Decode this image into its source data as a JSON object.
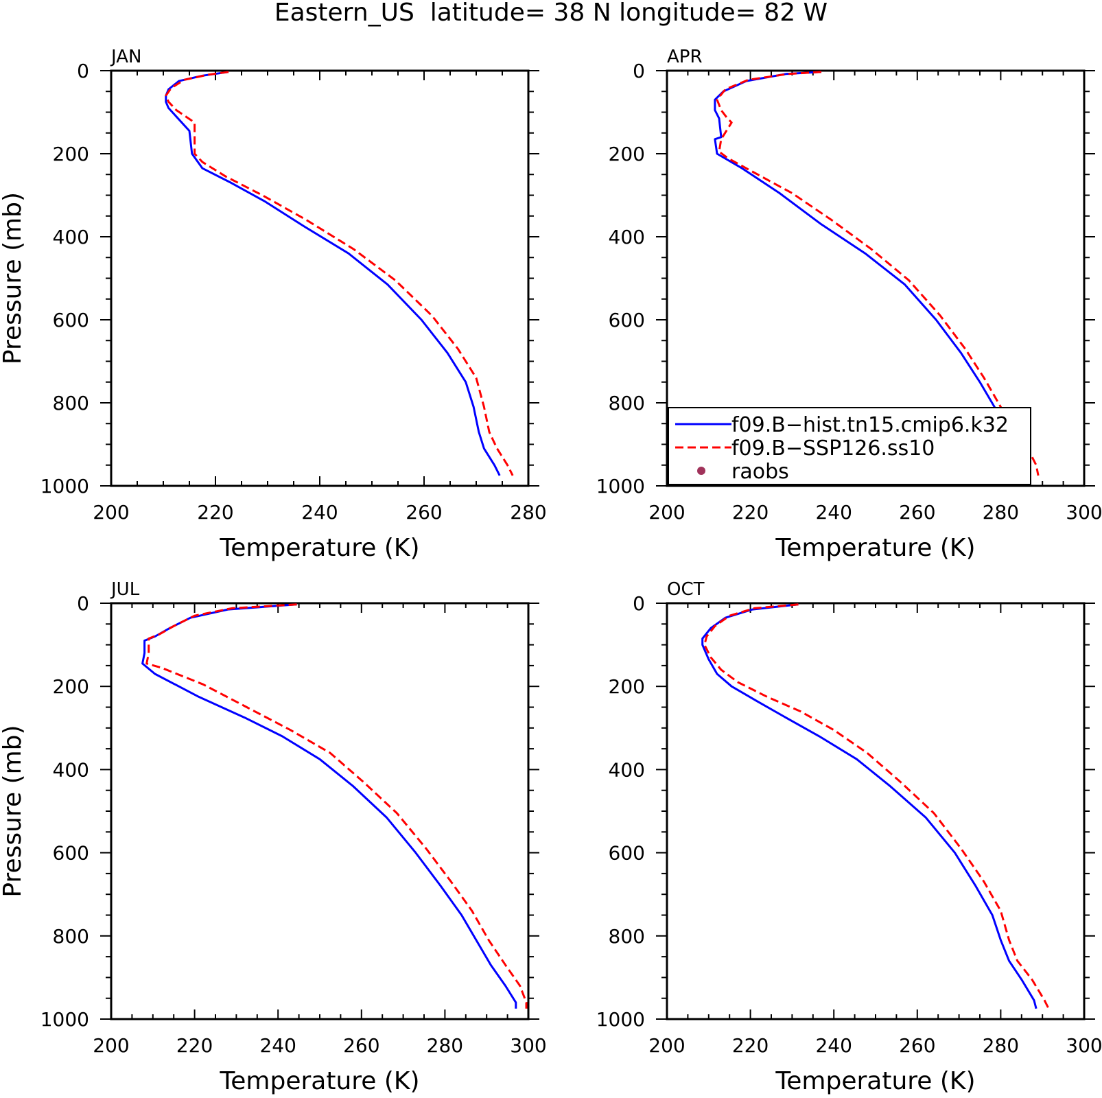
{
  "figure": {
    "title": "Eastern_US  latitude= 38 N longitude= 82 W"
  },
  "legend": {
    "entries": [
      {
        "label": "f09.B−hist.tn15.cmip6.k32",
        "style": "solid",
        "color": "#0000ff"
      },
      {
        "label": "f09.B−SSP126.ss10",
        "style": "dashed",
        "color": "#ff0000"
      },
      {
        "label": "raobs",
        "style": "marker",
        "color": "#a0325a"
      }
    ]
  },
  "chart_data": [
    {
      "type": "line",
      "title": "JAN",
      "xlabel": "Temperature (K)",
      "ylabel": "Pressure (mb)",
      "xlim": [
        200,
        280
      ],
      "ylim": [
        1000,
        0
      ],
      "xticks": [
        200,
        220,
        240,
        260,
        280
      ],
      "yticks": [
        0,
        200,
        400,
        600,
        800,
        1000
      ],
      "series": [
        {
          "color": "#0000ff",
          "style": "solid",
          "x": [
            222.5,
            217.5,
            213.0,
            211.0,
            210.5,
            210.5,
            211.0,
            215.0,
            215.5,
            217.5,
            223.0,
            229.5,
            237.0,
            245.5,
            253.0,
            259.5,
            264.5,
            268.0,
            269.5,
            270.5,
            271.5,
            273.5,
            274.5
          ],
          "y": [
            3,
            12,
            25,
            45,
            60,
            75,
            90,
            145,
            200,
            235,
            270,
            315,
            375,
            440,
            515,
            600,
            680,
            750,
            810,
            870,
            910,
            950,
            975
          ]
        },
        {
          "color": "#ff0000",
          "style": "dashed",
          "x": [
            222.5,
            218.5,
            214.0,
            211.5,
            210.5,
            211.0,
            212.5,
            216.0,
            216.0,
            217.5,
            222.0,
            229.0,
            237.5,
            246.5,
            254.5,
            261.5,
            266.5,
            270.0,
            271.5,
            272.5,
            274.0,
            276.0,
            277.0
          ],
          "y": [
            3,
            10,
            22,
            42,
            60,
            75,
            95,
            125,
            200,
            220,
            255,
            300,
            360,
            430,
            505,
            590,
            670,
            740,
            810,
            870,
            910,
            950,
            975
          ]
        }
      ]
    },
    {
      "type": "line",
      "title": "APR",
      "xlabel": "Temperature (K)",
      "ylabel": "",
      "xlim": [
        200,
        300
      ],
      "ylim": [
        1000,
        0
      ],
      "xticks": [
        200,
        220,
        240,
        260,
        280,
        300
      ],
      "yticks": [
        0,
        200,
        400,
        600,
        800,
        1000
      ],
      "series": [
        {
          "color": "#0000ff",
          "style": "solid",
          "x": [
            237.0,
            228.5,
            219.0,
            213.5,
            211.5,
            211.5,
            212.5,
            213.0,
            211.5,
            212.0,
            218.0,
            227.0,
            237.0,
            247.5,
            257.0,
            264.5,
            270.5,
            275.0,
            278.5,
            281.5,
            284.0,
            286.5,
            287.0
          ],
          "y": [
            3,
            8,
            25,
            50,
            70,
            95,
            115,
            160,
            165,
            200,
            235,
            295,
            370,
            440,
            515,
            600,
            680,
            750,
            810,
            865,
            910,
            950,
            975
          ]
        },
        {
          "color": "#ff0000",
          "style": "dashed",
          "x": [
            237.0,
            229.0,
            219.5,
            214.0,
            212.0,
            213.0,
            214.5,
            215.5,
            213.0,
            212.5,
            214.5,
            219.0,
            230.0,
            239.5,
            249.0,
            258.0,
            265.5,
            271.5,
            276.0,
            280.0,
            283.5,
            286.5,
            288.5,
            289.0
          ],
          "y": [
            3,
            8,
            22,
            45,
            70,
            95,
            115,
            125,
            165,
            195,
            210,
            235,
            295,
            360,
            430,
            505,
            590,
            670,
            740,
            810,
            870,
            910,
            950,
            975
          ]
        }
      ]
    },
    {
      "type": "line",
      "title": "JUL",
      "xlabel": "Temperature (K)",
      "ylabel": "Pressure (mb)",
      "xlim": [
        200,
        300
      ],
      "ylim": [
        1000,
        0
      ],
      "xticks": [
        200,
        220,
        240,
        260,
        280,
        300
      ],
      "yticks": [
        0,
        200,
        400,
        600,
        800,
        1000
      ],
      "series": [
        {
          "color": "#0000ff",
          "style": "solid",
          "x": [
            244.5,
            228.0,
            219.0,
            214.0,
            210.5,
            208.0,
            208.0,
            207.5,
            210.5,
            221.0,
            232.0,
            241.0,
            250.0,
            258.0,
            266.0,
            273.0,
            279.0,
            284.0,
            287.5,
            291.0,
            294.5,
            297.0,
            297.0
          ],
          "y": [
            3,
            15,
            35,
            60,
            80,
            90,
            120,
            145,
            170,
            225,
            275,
            320,
            375,
            440,
            515,
            600,
            680,
            750,
            810,
            870,
            920,
            960,
            975
          ]
        },
        {
          "color": "#ff0000",
          "style": "dashed",
          "x": [
            244.5,
            229.0,
            220.0,
            215.0,
            211.5,
            209.0,
            209.0,
            208.5,
            212.0,
            222.0,
            232.5,
            243.0,
            252.5,
            260.5,
            268.5,
            275.5,
            281.5,
            286.5,
            290.5,
            294.5,
            298.0,
            299.5,
            299.5
          ],
          "y": [
            3,
            12,
            30,
            55,
            75,
            85,
            120,
            145,
            155,
            195,
            250,
            305,
            360,
            430,
            505,
            590,
            670,
            740,
            810,
            870,
            920,
            960,
            975
          ]
        }
      ]
    },
    {
      "type": "line",
      "title": "OCT",
      "xlabel": "Temperature (K)",
      "ylabel": "",
      "xlim": [
        200,
        300
      ],
      "ylim": [
        1000,
        0
      ],
      "xticks": [
        200,
        220,
        240,
        260,
        280,
        300
      ],
      "yticks": [
        0,
        200,
        400,
        600,
        800,
        1000
      ],
      "series": [
        {
          "color": "#0000ff",
          "style": "solid",
          "x": [
            231.5,
            220.5,
            214.0,
            210.5,
            208.5,
            208.5,
            210.0,
            212.0,
            215.5,
            221.5,
            228.5,
            236.5,
            245.5,
            253.5,
            262.0,
            269.0,
            274.0,
            278.0,
            280.0,
            282.0,
            285.0,
            288.0,
            288.5
          ],
          "y": [
            3,
            15,
            35,
            60,
            85,
            100,
            135,
            170,
            200,
            235,
            275,
            320,
            375,
            440,
            515,
            600,
            680,
            750,
            810,
            860,
            905,
            955,
            975
          ]
        },
        {
          "color": "#ff0000",
          "style": "dashed",
          "x": [
            231.5,
            221.0,
            215.0,
            211.5,
            209.5,
            209.0,
            210.5,
            213.0,
            217.0,
            224.0,
            232.0,
            240.0,
            248.0,
            256.0,
            264.0,
            270.5,
            276.0,
            280.0,
            282.0,
            284.0,
            287.5,
            290.5,
            291.5
          ],
          "y": [
            3,
            12,
            30,
            55,
            80,
            100,
            130,
            160,
            190,
            225,
            260,
            305,
            360,
            430,
            505,
            590,
            670,
            740,
            810,
            860,
            905,
            955,
            975
          ]
        }
      ]
    }
  ]
}
